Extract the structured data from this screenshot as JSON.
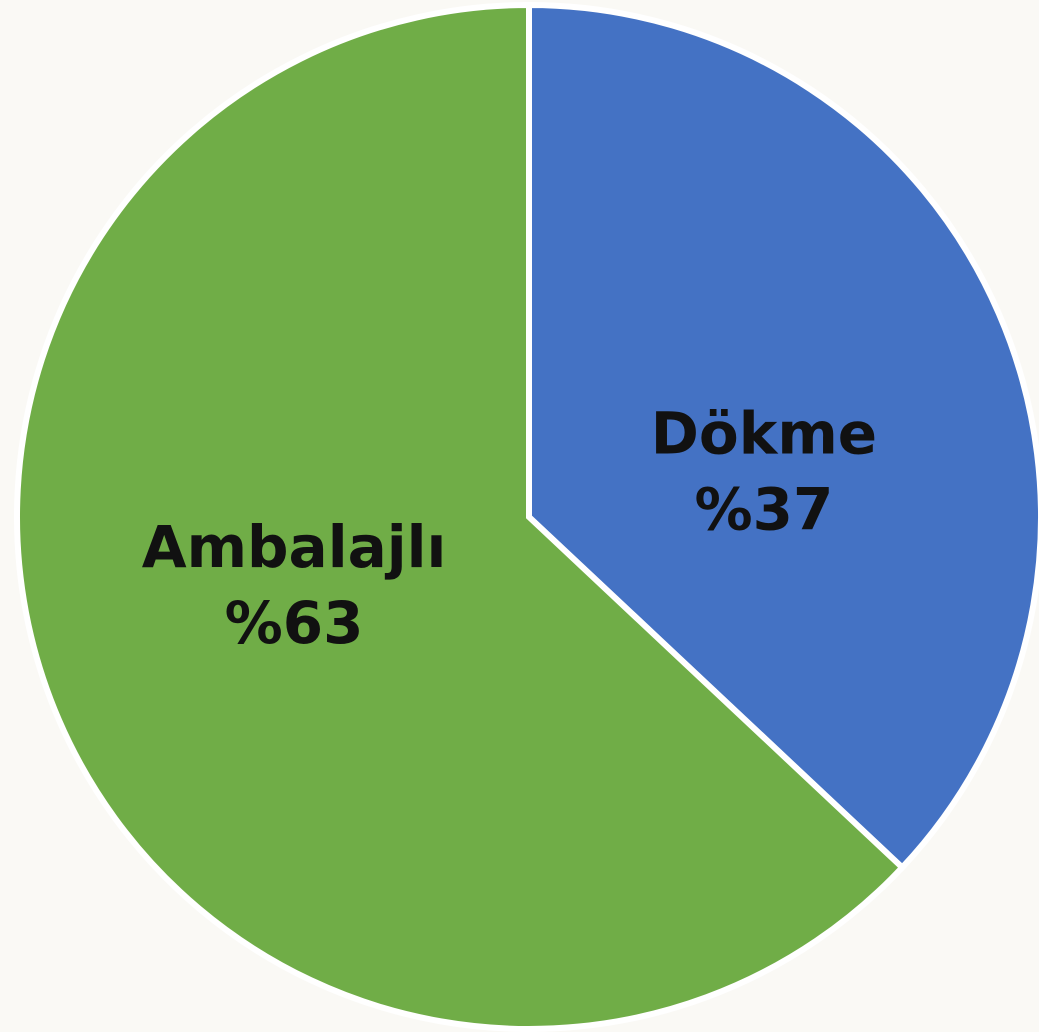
{
  "chart_data": {
    "type": "pie",
    "categories": [
      "Dökme",
      "Ambalajlı"
    ],
    "values": [
      37,
      63
    ],
    "value_labels": [
      "%37",
      "%63"
    ],
    "colors": [
      "#4472c4",
      "#70ad47"
    ]
  }
}
